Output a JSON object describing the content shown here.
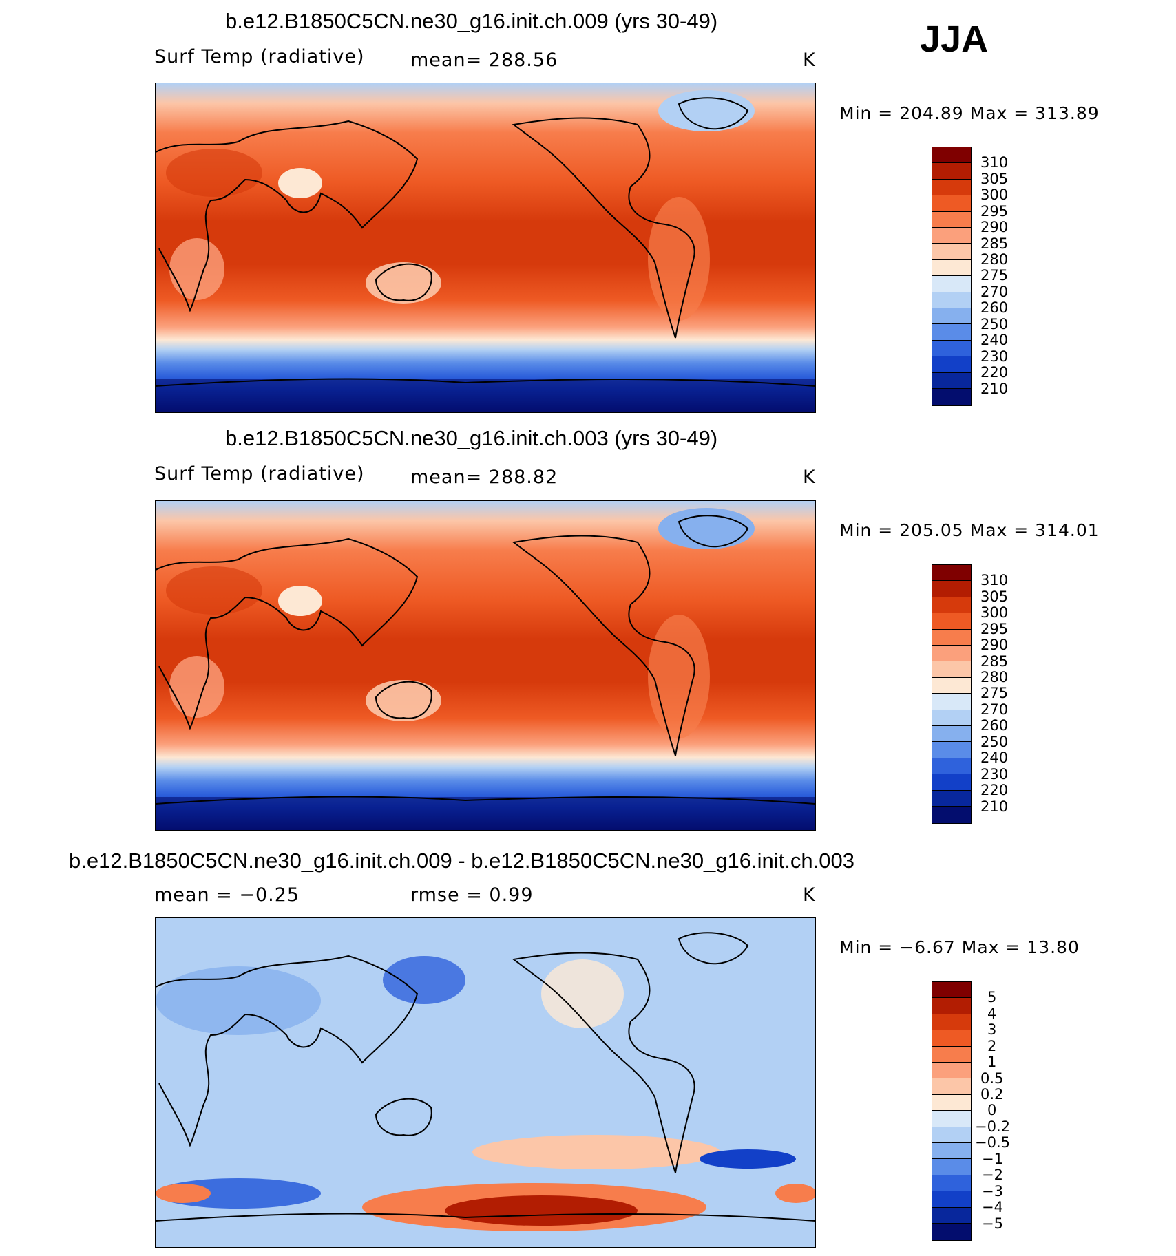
{
  "season": "JJA",
  "panels": [
    {
      "id": "case1",
      "title": "b.e12.B1850C5CN.ne30_g16.init.ch.009 (yrs 30-49)",
      "left_label": "Surf Temp (radiative)",
      "center_label": "mean=  288.56",
      "units": "K",
      "minmax": "Min  =  204.89  Max  =  313.89"
    },
    {
      "id": "case2",
      "title": "b.e12.B1850C5CN.ne30_g16.init.ch.003 (yrs 30-49)",
      "left_label": "Surf Temp (radiative)",
      "center_label": "mean=  288.82",
      "units": "K",
      "minmax": "Min  =  205.05  Max  =  314.01"
    },
    {
      "id": "diff",
      "title": "b.e12.B1850C5CN.ne30_g16.init.ch.009 - b.e12.B1850C5CN.ne30_g16.init.ch.003",
      "left_label": "mean =    −0.25",
      "center_label": "rmse =     0.99",
      "units": "K",
      "minmax": "Min  =    −6.67  Max  =    13.80"
    }
  ],
  "colorbars": {
    "temperature": {
      "levels": [
        "310",
        "305",
        "300",
        "295",
        "290",
        "285",
        "280",
        "275",
        "270",
        "260",
        "250",
        "240",
        "230",
        "220",
        "210"
      ],
      "colors": [
        "#7f0000",
        "#b21d02",
        "#d63a0c",
        "#ee5a24",
        "#f77d4c",
        "#fba07c",
        "#fcc6a8",
        "#fde8d4",
        "#d8e8f8",
        "#b2d0f4",
        "#86b0ee",
        "#5a8ce8",
        "#2f62dc",
        "#1240c8",
        "#08279c",
        "#030d6e"
      ]
    },
    "difference": {
      "levels": [
        "5",
        "4",
        "3",
        "2",
        "1",
        "0.5",
        "0.2",
        "0",
        "−0.2",
        "−0.5",
        "−1",
        "−2",
        "−3",
        "−4",
        "−5"
      ],
      "colors": [
        "#7f0000",
        "#b21d02",
        "#d63a0c",
        "#ee5a24",
        "#f77d4c",
        "#fba07c",
        "#fcc6a8",
        "#fde8d4",
        "#d8e8f8",
        "#b2d0f4",
        "#86b0ee",
        "#5a8ce8",
        "#2f62dc",
        "#1240c8",
        "#08279c",
        "#030d6e"
      ]
    }
  }
}
